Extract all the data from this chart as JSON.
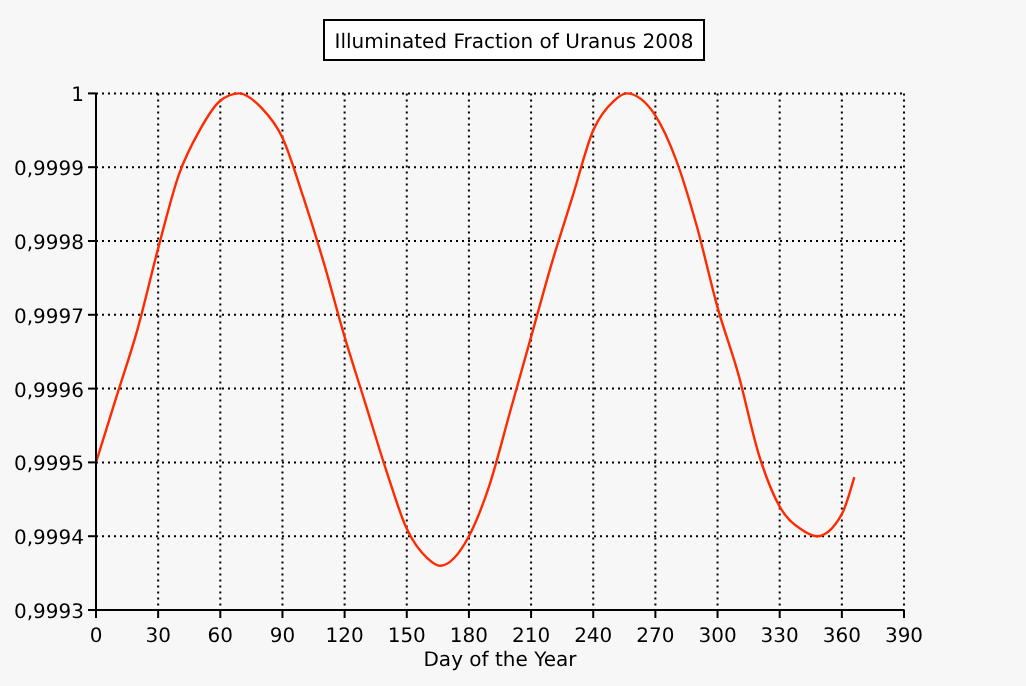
{
  "chart_data": {
    "type": "line",
    "title": "Illuminated Fraction of Uranus 2008",
    "xlabel": "Day of the Year",
    "xlim": [
      0,
      390
    ],
    "xticks": [
      0,
      30,
      60,
      90,
      120,
      150,
      180,
      210,
      240,
      270,
      300,
      330,
      360,
      390
    ],
    "ylim": [
      0.9993,
      1
    ],
    "yticks": [
      {
        "value": 0.9993,
        "label": "0,9993"
      },
      {
        "value": 0.9994,
        "label": "0,9994"
      },
      {
        "value": 0.9995,
        "label": "0,9995"
      },
      {
        "value": 0.9996,
        "label": "0,9996"
      },
      {
        "value": 0.9997,
        "label": "0,9997"
      },
      {
        "value": 0.9998,
        "label": "0,9998"
      },
      {
        "value": 0.9999,
        "label": "0,9999"
      },
      1
    ],
    "grid": true,
    "marker": "none",
    "line_style": "solid",
    "series": [
      {
        "color": "#ff2a00",
        "x": [
          0,
          10,
          20,
          30,
          40,
          50,
          60,
          69,
          80,
          90,
          100,
          110,
          120,
          130,
          140,
          150,
          160,
          166,
          180,
          190,
          200,
          210,
          220,
          230,
          240,
          250,
          256,
          270,
          280,
          290,
          300,
          310,
          320,
          330,
          340,
          348,
          360,
          366
        ],
        "values": [
          0.9995,
          0.99959,
          0.99968,
          0.99979,
          0.99989,
          0.99995,
          0.99999,
          1,
          0.99998,
          0.99994,
          0.99986,
          0.99977,
          0.99967,
          0.99958,
          0.99949,
          0.99941,
          0.99937,
          0.99936,
          0.9994,
          0.99947,
          0.99957,
          0.99967,
          0.99977,
          0.99986,
          0.99995,
          0.99999,
          1,
          0.99997,
          0.99991,
          0.99982,
          0.99971,
          0.99962,
          0.99951,
          0.99944,
          0.99941,
          0.9994,
          0.99943,
          0.99948
        ]
      }
    ]
  }
}
